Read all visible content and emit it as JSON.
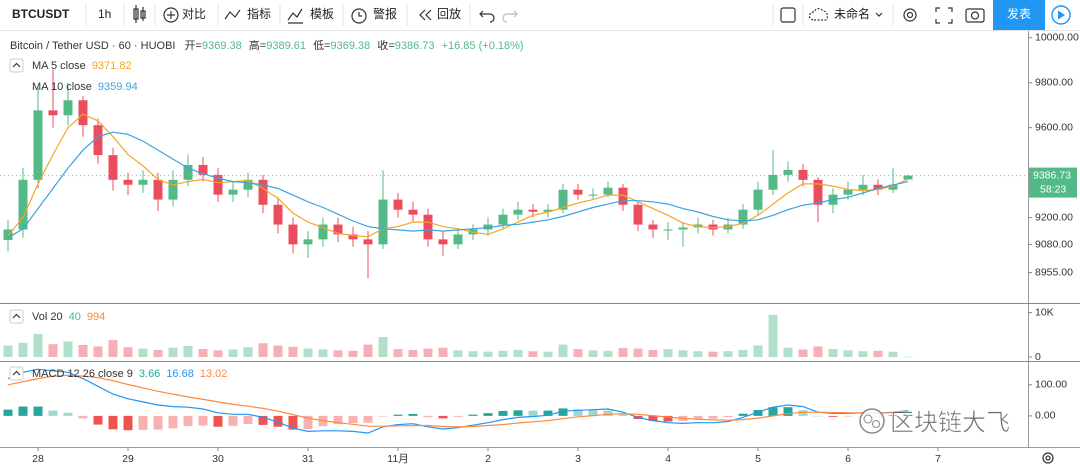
{
  "toolbar": {
    "symbol": "BTCUSDT",
    "interval": "1h",
    "compare": "对比",
    "indicators": "指标",
    "templates": "模板",
    "alerts": "警报",
    "replay": "回放",
    "layout_name": "未命名",
    "publish": "发表"
  },
  "watermark": "区块链大飞",
  "chart_data": [
    {
      "type": "candlestick",
      "title": "Bitcoin / Tether USD · 60 · HUOBI",
      "ohlc_labels": [
        "开=",
        "高=",
        "低=",
        "收="
      ],
      "change_label": "+16.85 (+0.18%)",
      "countdown": "58:23",
      "colors": {
        "up": "#53b987",
        "down": "#eb4d5c"
      },
      "categories": [
        null,
        null,
        "28",
        null,
        null,
        null,
        null,
        null,
        "29",
        null,
        null,
        null,
        null,
        null,
        "30",
        null,
        null,
        null,
        null,
        null,
        "31",
        null,
        null,
        null,
        null,
        null,
        "11月",
        null,
        null,
        null,
        null,
        null,
        "2",
        null,
        null,
        null,
        null,
        null,
        "3",
        null,
        null,
        null,
        null,
        null,
        "4",
        null,
        null,
        null,
        null,
        null,
        "5",
        null,
        null,
        null,
        null,
        null,
        "6",
        null,
        null,
        null,
        null,
        null,
        "7"
      ],
      "open": [
        9100,
        9147,
        9368,
        9677,
        9655,
        9722,
        9611,
        9478,
        9368,
        9346,
        9368,
        9280,
        9368,
        9434,
        9390,
        9302,
        9324,
        9368,
        9257,
        9169,
        9081,
        9103,
        9169,
        9125,
        9103,
        9081,
        9280,
        9235,
        9213,
        9103,
        9081,
        9125,
        9147,
        9169,
        9213,
        9235,
        9226,
        9235,
        9324,
        9302,
        9302,
        9333,
        9257,
        9169,
        9147,
        9147,
        9156,
        9169,
        9147,
        9169,
        9235,
        9324,
        9390,
        9412,
        9368,
        9257,
        9302,
        9324,
        9346,
        9324,
        9369.38,
        null,
        null
      ],
      "high": [
        9190,
        9420,
        9780,
        9860,
        9800,
        9740,
        9640,
        9510,
        9400,
        9410,
        9400,
        9410,
        9480,
        9470,
        9420,
        9360,
        9400,
        9390,
        9290,
        9200,
        9140,
        9200,
        9200,
        9160,
        9140,
        9410,
        9310,
        9270,
        9240,
        9140,
        9150,
        9170,
        9200,
        9240,
        9270,
        9260,
        9260,
        9350,
        9350,
        9330,
        9360,
        9350,
        9270,
        9190,
        9180,
        9180,
        9200,
        9190,
        9200,
        9260,
        9360,
        9500,
        9450,
        9440,
        9380,
        9330,
        9360,
        9390,
        9370,
        9420,
        9389.61,
        null,
        null
      ],
      "low": [
        9050,
        9110,
        9330,
        9600,
        9610,
        9560,
        9440,
        9320,
        9300,
        9310,
        9230,
        9250,
        9340,
        9360,
        9270,
        9270,
        9290,
        9220,
        9130,
        9040,
        9020,
        9070,
        9090,
        9070,
        8930,
        9060,
        9200,
        9180,
        9070,
        9030,
        9060,
        9100,
        9120,
        9150,
        9190,
        9200,
        9200,
        9220,
        9280,
        9280,
        9290,
        9230,
        9140,
        9110,
        9100,
        9070,
        9130,
        9120,
        9130,
        9150,
        9210,
        9300,
        9360,
        9340,
        9180,
        9220,
        9280,
        9300,
        9300,
        9310,
        9369.38,
        null,
        null
      ],
      "close": [
        9147,
        9368,
        9677,
        9655,
        9722,
        9611,
        9478,
        9368,
        9346,
        9368,
        9280,
        9368,
        9434,
        9390,
        9302,
        9324,
        9368,
        9257,
        9169,
        9081,
        9103,
        9169,
        9125,
        9103,
        9081,
        9280,
        9235,
        9213,
        9103,
        9081,
        9125,
        9147,
        9169,
        9213,
        9235,
        9226,
        9235,
        9324,
        9302,
        9302,
        9333,
        9257,
        9169,
        9147,
        9147,
        9156,
        9169,
        9147,
        9169,
        9235,
        9324,
        9390,
        9412,
        9368,
        9257,
        9302,
        9324,
        9346,
        9324,
        9346,
        9386.73,
        null,
        null
      ],
      "series": [
        {
          "name": "MA 5 close",
          "color": "#f5a623",
          "values": [
            9120,
            9200,
            9350,
            9480,
            9600,
            9660,
            9630,
            9560,
            9480,
            9430,
            9370,
            9345,
            9360,
            9370,
            9355,
            9360,
            9365,
            9330,
            9285,
            9220,
            9180,
            9155,
            9130,
            9120,
            9115,
            9150,
            9160,
            9180,
            9180,
            9160,
            9150,
            9135,
            9125,
            9150,
            9180,
            9210,
            9225,
            9245,
            9265,
            9280,
            9300,
            9300,
            9270,
            9240,
            9210,
            9175,
            9160,
            9155,
            9160,
            9175,
            9210,
            9260,
            9310,
            9350,
            9350,
            9340,
            9325,
            9320,
            9325,
            9340,
            9371.82,
            null,
            null
          ]
        },
        {
          "name": "MA 10 close",
          "color": "#3ba3e0",
          "values": [
            9110,
            9150,
            9240,
            9330,
            9420,
            9500,
            9560,
            9580,
            9570,
            9540,
            9500,
            9460,
            9420,
            9395,
            9375,
            9360,
            9355,
            9345,
            9330,
            9300,
            9270,
            9245,
            9215,
            9185,
            9160,
            9150,
            9145,
            9140,
            9145,
            9140,
            9145,
            9150,
            9155,
            9165,
            9170,
            9180,
            9190,
            9205,
            9225,
            9245,
            9260,
            9275,
            9275,
            9270,
            9260,
            9240,
            9225,
            9205,
            9190,
            9185,
            9190,
            9210,
            9235,
            9255,
            9265,
            9280,
            9290,
            9310,
            9330,
            9345,
            9359.94,
            null,
            null
          ]
        }
      ],
      "ylim": [
        8820,
        10030
      ],
      "yticks": [
        {
          "value": 10000,
          "label": "10000.00"
        },
        {
          "value": 9800,
          "label": "9800.00"
        },
        {
          "value": 9600,
          "label": "9600.00"
        },
        {
          "value": 9200,
          "label": "9200.00"
        },
        {
          "value": 9080,
          "label": "9080.00"
        },
        {
          "value": 8955,
          "label": "8955.00"
        }
      ],
      "grid": false
    },
    {
      "type": "bar",
      "title": "Vol 20",
      "ma_value": 994,
      "ma_color": "#f08c3c",
      "values": [
        2600,
        3200,
        5200,
        2900,
        3500,
        2700,
        2400,
        3800,
        2200,
        1900,
        1600,
        2100,
        2500,
        1800,
        1500,
        1700,
        2200,
        3100,
        2600,
        2300,
        1900,
        1700,
        1500,
        1400,
        2800,
        4500,
        1800,
        1600,
        1900,
        2100,
        1500,
        1300,
        1200,
        1400,
        1600,
        1300,
        1200,
        2800,
        1800,
        1500,
        1400,
        2000,
        1900,
        1600,
        1800,
        1500,
        1300,
        1200,
        1300,
        1600,
        2600,
        9500,
        2100,
        1700,
        2400,
        1800,
        1500,
        1300,
        1400,
        1200,
        40,
        null,
        null
      ],
      "ylim": [
        0,
        11500
      ],
      "yticks": [
        {
          "value": 10000,
          "label": "10K"
        },
        0
      ]
    },
    {
      "type": "macd",
      "title": "MACD 12 26 close 9",
      "series": [
        {
          "style": "bar",
          "color": "#26a69a",
          "negative_color": "#ef5350",
          "values": [
            20,
            30,
            30,
            17,
            10,
            -8,
            -28,
            -43,
            -46,
            -45,
            -44,
            -40,
            -33,
            -31,
            -35,
            -32,
            -26,
            -29,
            -35,
            -44,
            -43,
            -33,
            -26,
            -23,
            -22,
            -2,
            4,
            6,
            -4,
            -8,
            -3,
            4,
            9,
            16,
            18,
            17,
            17,
            24,
            21,
            19,
            17,
            5,
            -10,
            -16,
            -18,
            -16,
            -11,
            -9,
            -4,
            7,
            19,
            28,
            28,
            18,
            0,
            -3,
            -2,
            0,
            -2,
            2,
            3.66,
            null,
            null
          ]
        },
        {
          "style": "line",
          "color": "#2196f3",
          "values": [
            120,
            140,
            150,
            145,
            140,
            120,
            95,
            70,
            55,
            45,
            35,
            30,
            28,
            22,
            10,
            5,
            5,
            -5,
            -20,
            -40,
            -50,
            -48,
            -48,
            -50,
            -55,
            -35,
            -28,
            -25,
            -35,
            -42,
            -38,
            -30,
            -22,
            -12,
            -5,
            -2,
            2,
            15,
            18,
            20,
            22,
            12,
            -5,
            -15,
            -22,
            -24,
            -22,
            -22,
            -18,
            -5,
            12,
            28,
            35,
            30,
            12,
            8,
            8,
            10,
            8,
            12,
            16.68,
            null,
            null
          ]
        },
        {
          "style": "line",
          "color": "#ff8a3d",
          "values": [
            100,
            110,
            120,
            128,
            130,
            128,
            123,
            113,
            101,
            90,
            79,
            70,
            61,
            53,
            45,
            37,
            31,
            24,
            15,
            4,
            -7,
            -15,
            -22,
            -27,
            -33,
            -33,
            -32,
            -31,
            -31,
            -34,
            -35,
            -34,
            -31,
            -28,
            -23,
            -19,
            -15,
            -9,
            -3,
            1,
            5,
            7,
            5,
            1,
            -4,
            -8,
            -11,
            -13,
            -14,
            -12,
            -7,
            0,
            7,
            12,
            12,
            11,
            10,
            10,
            10,
            10,
            13.02,
            null,
            null
          ]
        }
      ],
      "ylim": [
        -100,
        170
      ],
      "yticks": [
        {
          "value": 100,
          "label": "100.00"
        },
        {
          "value": 0,
          "label": "0.00"
        }
      ]
    }
  ]
}
